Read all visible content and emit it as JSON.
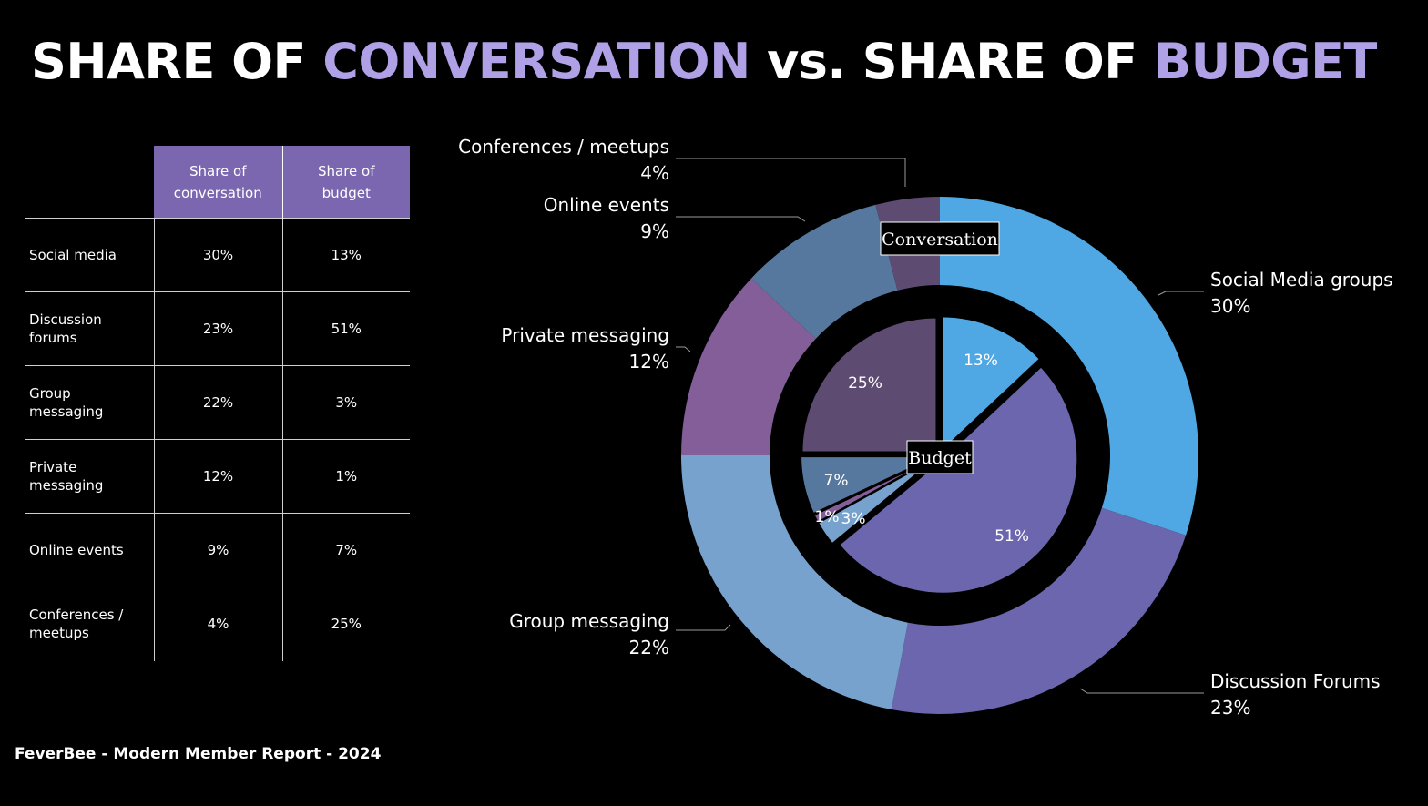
{
  "title": {
    "part1": "SHARE OF ",
    "part2": "CONVERSATION",
    "part3": " vs. SHARE OF ",
    "part4": "BUDGET"
  },
  "colors": {
    "accent": "#b0a0e6",
    "table_header": "#7b67b0",
    "background": "#000000"
  },
  "table": {
    "headers": [
      "",
      "Share of conversation",
      "Share of budget"
    ],
    "rows": [
      {
        "label": "Social media",
        "conversation": "30%",
        "budget": "13%"
      },
      {
        "label": "Discussion forums",
        "conversation": "23%",
        "budget": "51%"
      },
      {
        "label": "Group messaging",
        "conversation": "22%",
        "budget": "3%"
      },
      {
        "label": "Private messaging",
        "conversation": "12%",
        "budget": "1%"
      },
      {
        "label": "Online events",
        "conversation": "9%",
        "budget": "7%"
      },
      {
        "label": "Conferences / meetups",
        "conversation": "4%",
        "budget": "25%"
      }
    ]
  },
  "footer": "FeverBee - Modern Member Report - 2024",
  "chart_data": {
    "type": "pie",
    "subtype": "nested-donut",
    "outer_tag": "Conversation",
    "inner_tag": "Budget",
    "outer_series": {
      "name": "Conversation",
      "slices": [
        {
          "label": "Social Media groups",
          "value": 30,
          "display": "30%",
          "color": "#4fa8e3"
        },
        {
          "label": "Discussion Forums",
          "value": 23,
          "display": "23%",
          "color": "#6b66ad"
        },
        {
          "label": "Group messaging",
          "value": 22,
          "display": "22%",
          "color": "#77a2cd"
        },
        {
          "label": "Private messaging",
          "value": 12,
          "display": "12%",
          "color": "#835e98"
        },
        {
          "label": "Online events",
          "value": 9,
          "display": "9%",
          "color": "#56789f"
        },
        {
          "label": "Conferences / meetups",
          "value": 4,
          "display": "4%",
          "color": "#5e4b72"
        }
      ]
    },
    "inner_series": {
      "name": "Budget",
      "slices": [
        {
          "label": "Social media",
          "value": 13,
          "display": "13%",
          "color": "#4fa8e3"
        },
        {
          "label": "Discussion forums",
          "value": 51,
          "display": "51%",
          "color": "#6b66ad"
        },
        {
          "label": "Group messaging",
          "value": 3,
          "display": "3%",
          "color": "#77a2cd"
        },
        {
          "label": "Private messaging",
          "value": 1,
          "display": "1%",
          "color": "#835e98"
        },
        {
          "label": "Online events",
          "value": 7,
          "display": "7%",
          "color": "#56789f"
        },
        {
          "label": "Conferences / meetups",
          "value": 25,
          "display": "25%",
          "color": "#5e4b72"
        }
      ]
    }
  }
}
